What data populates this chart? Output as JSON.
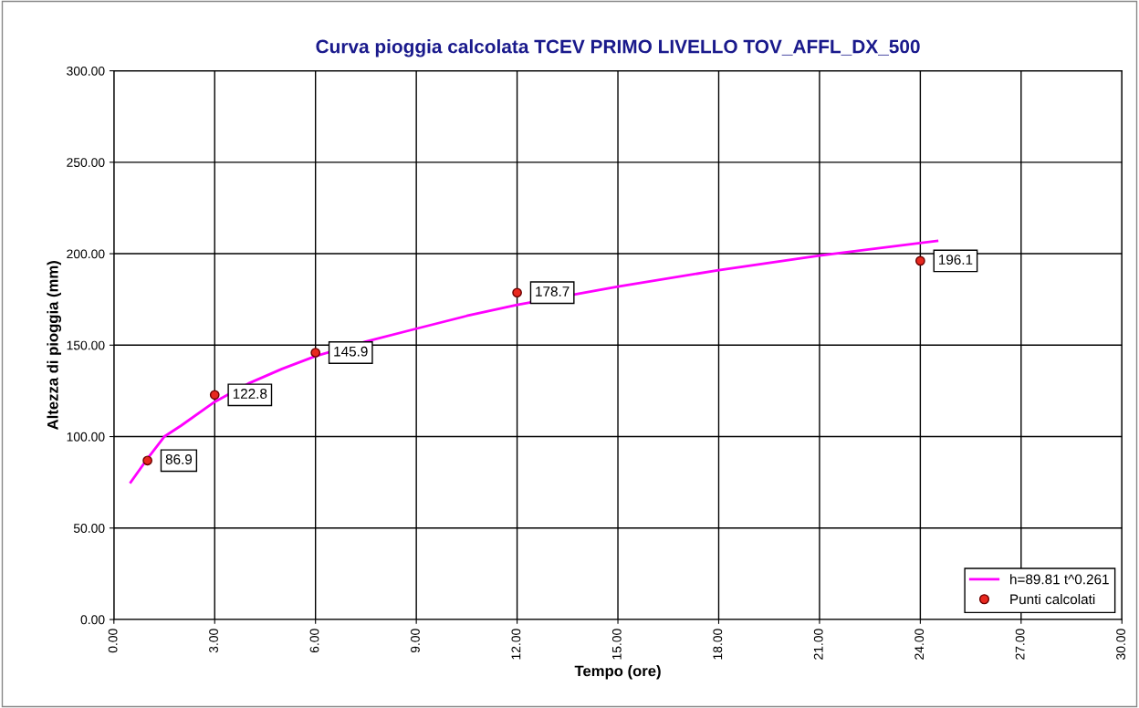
{
  "chart_data": {
    "type": "line",
    "title": "Curva pioggia calcolata TCEV PRIMO LIVELLO TOV_AFFL_DX_500",
    "xlabel": "Tempo (ore)",
    "ylabel": "Altezza di pioggia (mm)",
    "xlim": [
      0,
      30
    ],
    "ylim": [
      0,
      300
    ],
    "xticks": [
      {
        "value": 0,
        "label": "0.00"
      },
      {
        "value": 3,
        "label": "3.00"
      },
      {
        "value": 6,
        "label": "6.00"
      },
      {
        "value": 9,
        "label": "9.00"
      },
      {
        "value": 12,
        "label": "12.00"
      },
      {
        "value": 15,
        "label": "15.00"
      },
      {
        "value": 18,
        "label": "18.00"
      },
      {
        "value": 21,
        "label": "21.00"
      },
      {
        "value": 24,
        "label": "24.00"
      },
      {
        "value": 27,
        "label": "27.00"
      },
      {
        "value": 30,
        "label": "30.00"
      }
    ],
    "yticks": [
      {
        "value": 0,
        "label": "0.00"
      },
      {
        "value": 50,
        "label": "50.00"
      },
      {
        "value": 100,
        "label": "100.00"
      },
      {
        "value": 150,
        "label": "150.00"
      },
      {
        "value": 200,
        "label": "200.00"
      },
      {
        "value": 250,
        "label": "250.00"
      },
      {
        "value": 300,
        "label": "300.00"
      }
    ],
    "grid": true,
    "legend": "bottom right",
    "series": [
      {
        "name": "h=89.81 t^0.261",
        "color": "#ff00ff",
        "marker": "none",
        "line_style": "solid",
        "x": [
          0.5,
          1,
          1.5,
          2,
          3,
          4,
          5,
          6,
          7.5,
          9,
          10.5,
          12,
          15,
          18,
          21,
          24.5
        ],
        "values": [
          75,
          88,
          100,
          106,
          119,
          129,
          137,
          144,
          152,
          159,
          166,
          172,
          182,
          191,
          199,
          207
        ]
      },
      {
        "name": "Punti calcolati",
        "type": "scatter",
        "color": "#e8281e",
        "marker": "circle",
        "data_labels": true,
        "x": [
          1,
          3,
          6,
          12,
          24
        ],
        "values": [
          86.9,
          122.8,
          145.9,
          178.7,
          196.1
        ]
      }
    ]
  }
}
